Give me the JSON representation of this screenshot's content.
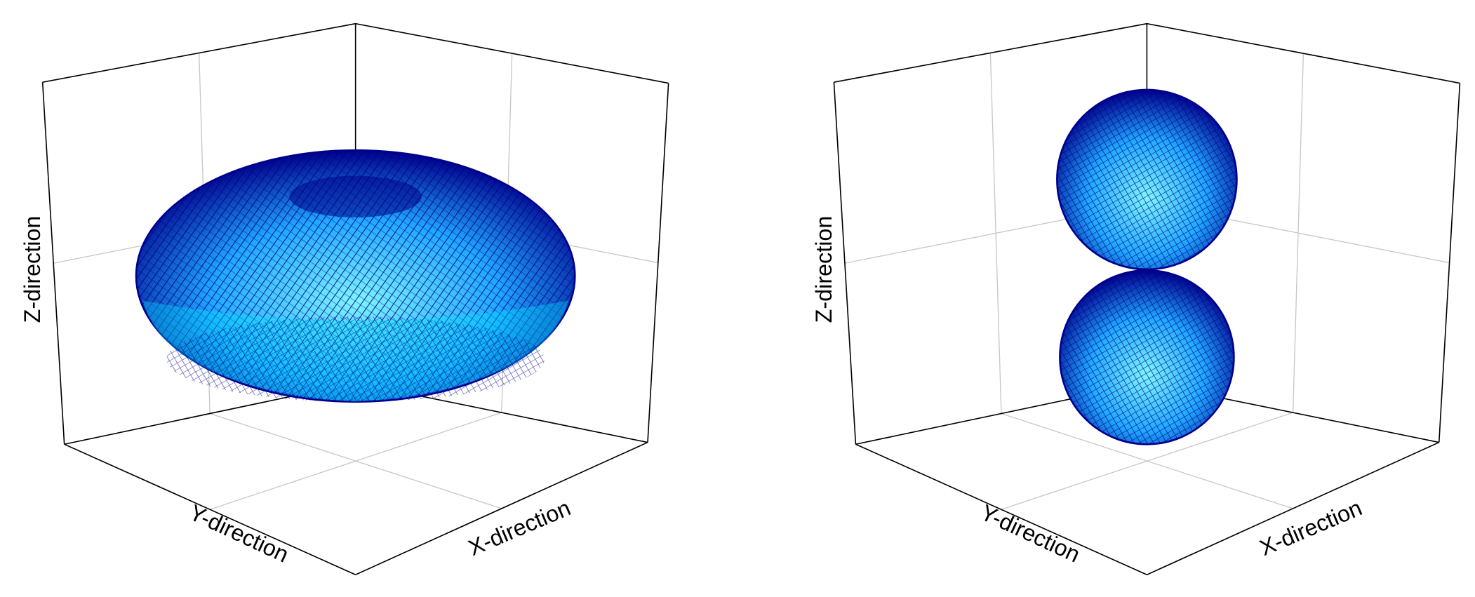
{
  "chart_data": [
    {
      "type": "surface",
      "shape": "torus",
      "color": "#1fa8ff",
      "edge_color": "#00008b",
      "x_label": "X-direction",
      "y_label": "Y-direction",
      "z_label": "Z-direction"
    },
    {
      "type": "surface",
      "shape": "dumbbell",
      "color": "#1fa8ff",
      "edge_color": "#00008b",
      "x_label": "X-direction",
      "y_label": "Y-direction",
      "z_label": "Z-direction"
    }
  ]
}
